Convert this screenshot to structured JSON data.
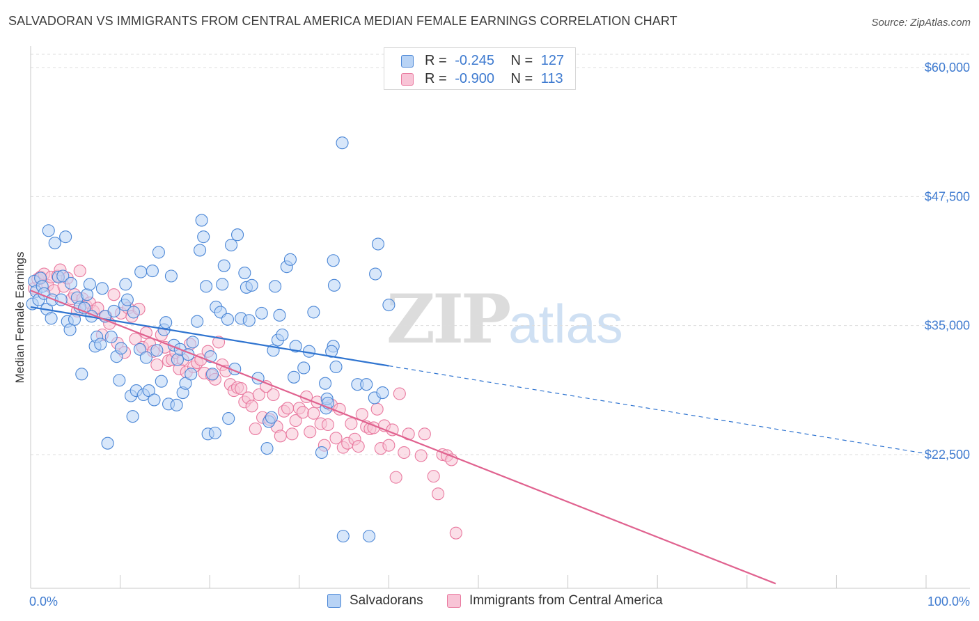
{
  "title": "SALVADORAN VS IMMIGRANTS FROM CENTRAL AMERICA MEDIAN FEMALE EARNINGS CORRELATION CHART",
  "source": "Source: ZipAtlas.com",
  "watermark": {
    "zip": "ZIP",
    "atlas": "atlas"
  },
  "legend": {
    "r_label": "R =",
    "n_label": "N =",
    "series": [
      {
        "r": "-0.245",
        "n": "127"
      },
      {
        "r": "-0.900",
        "n": "113"
      }
    ]
  },
  "colors": {
    "blue_fill": "#b8d3f5",
    "blue_stroke": "#4a86d6",
    "blue_line": "#2f74d0",
    "pink_fill": "#f8c4d6",
    "pink_stroke": "#e9799f",
    "pink_line": "#e0628f",
    "axis_text": "#3f7bd0",
    "grid": "#dddddd"
  },
  "chart_data": {
    "type": "scatter",
    "ylabel": "Median Female Earnings",
    "xlim": [
      0,
      100
    ],
    "ylim": [
      10000,
      62000
    ],
    "yticks": [
      22500,
      35000,
      47500,
      60000
    ],
    "ytick_labels": [
      "$22,500",
      "$35,000",
      "$47,500",
      "$60,000"
    ],
    "x_end_labels": [
      "0.0%",
      "100.0%"
    ],
    "grid": "horizontal dashed",
    "legend_position": "top-center",
    "series": [
      {
        "name": "Salvadorans",
        "trend": {
          "x": [
            0,
            40,
            100
          ],
          "y": [
            36800,
            31100,
            22600
          ],
          "solid_until": 40
        },
        "points": [
          [
            0.2,
            37100
          ],
          [
            0.4,
            39300
          ],
          [
            0.6,
            38300
          ],
          [
            0.9,
            37500
          ],
          [
            1.1,
            39600
          ],
          [
            1.3,
            38800
          ],
          [
            1.5,
            38100
          ],
          [
            1.8,
            36600
          ],
          [
            2.0,
            44200
          ],
          [
            2.3,
            35700
          ],
          [
            2.4,
            37500
          ],
          [
            2.7,
            43000
          ],
          [
            3.1,
            39700
          ],
          [
            3.4,
            37500
          ],
          [
            3.6,
            39800
          ],
          [
            3.9,
            43600
          ],
          [
            4.1,
            35400
          ],
          [
            4.4,
            34600
          ],
          [
            4.5,
            39100
          ],
          [
            4.9,
            35600
          ],
          [
            5.2,
            37700
          ],
          [
            5.5,
            36800
          ],
          [
            5.7,
            30300
          ],
          [
            6.0,
            36700
          ],
          [
            6.3,
            38000
          ],
          [
            6.6,
            39000
          ],
          [
            6.8,
            35900
          ],
          [
            7.2,
            33000
          ],
          [
            7.4,
            33900
          ],
          [
            7.8,
            33200
          ],
          [
            8.0,
            38600
          ],
          [
            8.3,
            35900
          ],
          [
            8.6,
            23600
          ],
          [
            9.0,
            33900
          ],
          [
            9.3,
            36400
          ],
          [
            9.6,
            32000
          ],
          [
            9.9,
            29700
          ],
          [
            10.1,
            32800
          ],
          [
            10.5,
            37000
          ],
          [
            10.6,
            39000
          ],
          [
            10.8,
            37500
          ],
          [
            11.2,
            28200
          ],
          [
            11.4,
            26200
          ],
          [
            11.5,
            36300
          ],
          [
            11.8,
            28700
          ],
          [
            12.2,
            32700
          ],
          [
            12.3,
            40200
          ],
          [
            12.6,
            28300
          ],
          [
            12.9,
            31900
          ],
          [
            13.2,
            28700
          ],
          [
            13.6,
            40300
          ],
          [
            13.8,
            27800
          ],
          [
            14.1,
            32600
          ],
          [
            14.3,
            42100
          ],
          [
            14.6,
            29600
          ],
          [
            14.9,
            34600
          ],
          [
            15.1,
            35300
          ],
          [
            15.4,
            27400
          ],
          [
            15.7,
            39800
          ],
          [
            16.0,
            33100
          ],
          [
            16.3,
            27300
          ],
          [
            16.4,
            31700
          ],
          [
            16.7,
            32700
          ],
          [
            17.0,
            28500
          ],
          [
            17.3,
            29400
          ],
          [
            17.6,
            32200
          ],
          [
            17.9,
            30300
          ],
          [
            18.1,
            33400
          ],
          [
            18.6,
            35400
          ],
          [
            18.9,
            42300
          ],
          [
            19.1,
            45200
          ],
          [
            19.3,
            43600
          ],
          [
            19.6,
            38800
          ],
          [
            19.8,
            24500
          ],
          [
            20.1,
            32000
          ],
          [
            20.3,
            30300
          ],
          [
            20.6,
            24600
          ],
          [
            20.7,
            36800
          ],
          [
            21.2,
            36300
          ],
          [
            21.4,
            39000
          ],
          [
            21.6,
            40800
          ],
          [
            22.0,
            35600
          ],
          [
            22.1,
            26000
          ],
          [
            22.4,
            42800
          ],
          [
            22.8,
            30800
          ],
          [
            23.1,
            43800
          ],
          [
            23.5,
            35700
          ],
          [
            23.9,
            40100
          ],
          [
            24.1,
            38700
          ],
          [
            24.4,
            35500
          ],
          [
            24.7,
            38900
          ],
          [
            25.4,
            29900
          ],
          [
            25.8,
            36200
          ],
          [
            26.4,
            23100
          ],
          [
            26.6,
            25700
          ],
          [
            26.9,
            26100
          ],
          [
            27.1,
            32600
          ],
          [
            27.3,
            38800
          ],
          [
            27.6,
            33600
          ],
          [
            27.8,
            36000
          ],
          [
            28.1,
            34100
          ],
          [
            28.6,
            40700
          ],
          [
            29.0,
            41400
          ],
          [
            29.4,
            30000
          ],
          [
            29.6,
            33000
          ],
          [
            30.5,
            30900
          ],
          [
            31.1,
            32500
          ],
          [
            31.6,
            36300
          ],
          [
            32.5,
            22700
          ],
          [
            32.9,
            29400
          ],
          [
            33.9,
            38900
          ],
          [
            33.8,
            33000
          ],
          [
            33.6,
            32500
          ],
          [
            33.0,
            27000
          ],
          [
            33.8,
            41300
          ],
          [
            34.1,
            31000
          ],
          [
            33.1,
            27900
          ],
          [
            33.2,
            27500
          ],
          [
            34.8,
            52700
          ],
          [
            34.9,
            14600
          ],
          [
            36.5,
            29300
          ],
          [
            37.5,
            29300
          ],
          [
            37.8,
            14600
          ],
          [
            38.5,
            40000
          ],
          [
            38.4,
            28000
          ],
          [
            38.8,
            42900
          ],
          [
            39.3,
            28500
          ],
          [
            40.0,
            37000
          ]
        ]
      },
      {
        "name": "Immigrants from Central America",
        "trend": {
          "x": [
            0,
            83.2
          ],
          "y": [
            38400,
            10000
          ],
          "solid_until": 83.2
        },
        "points": [
          [
            0.4,
            38600
          ],
          [
            0.8,
            39500
          ],
          [
            1.1,
            39700
          ],
          [
            1.5,
            40000
          ],
          [
            1.9,
            38900
          ],
          [
            2.3,
            39700
          ],
          [
            2.6,
            38400
          ],
          [
            3.0,
            39800
          ],
          [
            3.3,
            40400
          ],
          [
            3.7,
            38800
          ],
          [
            4.1,
            39600
          ],
          [
            4.6,
            37600
          ],
          [
            4.9,
            38000
          ],
          [
            5.2,
            36400
          ],
          [
            5.5,
            40300
          ],
          [
            5.8,
            37600
          ],
          [
            6.2,
            36900
          ],
          [
            6.6,
            37200
          ],
          [
            7.0,
            36400
          ],
          [
            7.5,
            36700
          ],
          [
            8.0,
            34100
          ],
          [
            8.4,
            35900
          ],
          [
            8.8,
            35200
          ],
          [
            9.3,
            38000
          ],
          [
            9.7,
            33300
          ],
          [
            10.1,
            36200
          ],
          [
            10.5,
            32400
          ],
          [
            10.9,
            36700
          ],
          [
            11.3,
            35900
          ],
          [
            11.7,
            33700
          ],
          [
            12.1,
            36600
          ],
          [
            12.5,
            32900
          ],
          [
            12.9,
            34300
          ],
          [
            13.3,
            33200
          ],
          [
            13.7,
            32500
          ],
          [
            14.1,
            31200
          ],
          [
            14.6,
            34100
          ],
          [
            15.0,
            32900
          ],
          [
            15.4,
            31600
          ],
          [
            15.8,
            31700
          ],
          [
            16.2,
            32400
          ],
          [
            16.6,
            30800
          ],
          [
            17.0,
            31700
          ],
          [
            17.4,
            30500
          ],
          [
            17.8,
            33200
          ],
          [
            18.2,
            31000
          ],
          [
            18.6,
            31400
          ],
          [
            19.0,
            31700
          ],
          [
            19.4,
            30400
          ],
          [
            19.8,
            32500
          ],
          [
            20.2,
            30200
          ],
          [
            20.6,
            29800
          ],
          [
            21.0,
            33400
          ],
          [
            21.4,
            31200
          ],
          [
            21.8,
            30600
          ],
          [
            22.3,
            29300
          ],
          [
            22.7,
            28700
          ],
          [
            23.1,
            29000
          ],
          [
            23.5,
            28900
          ],
          [
            23.9,
            27600
          ],
          [
            24.3,
            28000
          ],
          [
            24.7,
            27200
          ],
          [
            25.1,
            25000
          ],
          [
            25.5,
            28300
          ],
          [
            25.9,
            26100
          ],
          [
            26.3,
            29100
          ],
          [
            26.7,
            25900
          ],
          [
            27.1,
            28300
          ],
          [
            27.5,
            25200
          ],
          [
            27.9,
            24300
          ],
          [
            28.3,
            26700
          ],
          [
            28.7,
            27000
          ],
          [
            29.2,
            24500
          ],
          [
            29.6,
            25800
          ],
          [
            30.0,
            27000
          ],
          [
            30.4,
            26600
          ],
          [
            30.8,
            28100
          ],
          [
            31.2,
            24700
          ],
          [
            31.6,
            26500
          ],
          [
            32.0,
            27600
          ],
          [
            32.4,
            25500
          ],
          [
            32.8,
            23400
          ],
          [
            33.2,
            25400
          ],
          [
            33.6,
            27300
          ],
          [
            34.1,
            24100
          ],
          [
            34.5,
            26900
          ],
          [
            34.9,
            23200
          ],
          [
            35.4,
            23600
          ],
          [
            35.8,
            25500
          ],
          [
            36.2,
            24000
          ],
          [
            36.6,
            23300
          ],
          [
            37.0,
            26400
          ],
          [
            37.5,
            25200
          ],
          [
            37.9,
            25000
          ],
          [
            38.3,
            25100
          ],
          [
            38.7,
            26900
          ],
          [
            39.1,
            23100
          ],
          [
            39.5,
            25300
          ],
          [
            40.0,
            23400
          ],
          [
            40.4,
            24900
          ],
          [
            40.8,
            20300
          ],
          [
            41.2,
            28400
          ],
          [
            41.7,
            22700
          ],
          [
            42.2,
            24500
          ],
          [
            43.6,
            22400
          ],
          [
            44.0,
            24500
          ],
          [
            45.0,
            20400
          ],
          [
            45.5,
            18700
          ],
          [
            46.0,
            22500
          ],
          [
            46.5,
            22400
          ],
          [
            47.0,
            22000
          ],
          [
            47.5,
            14900
          ]
        ]
      }
    ]
  },
  "bottom_legend": [
    {
      "label": "Salvadorans"
    },
    {
      "label": "Immigrants from Central America"
    }
  ]
}
